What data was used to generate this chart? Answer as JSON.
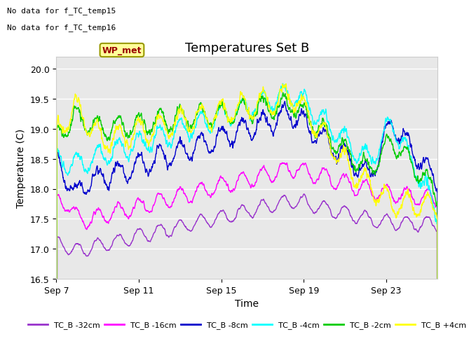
{
  "title": "Temperatures Set B",
  "xlabel": "Time",
  "ylabel": "Temperature (C)",
  "ylim": [
    16.5,
    20.2
  ],
  "note1": "No data for f_TC_temp15",
  "note2": "No data for f_TC_temp16",
  "wp_met_label": "WP_met",
  "legend_entries": [
    "TC_B -32cm",
    "TC_B -16cm",
    "TC_B -8cm",
    "TC_B -4cm",
    "TC_B -2cm",
    "TC_B +4cm"
  ],
  "line_colors": [
    "#9933cc",
    "#ff00ff",
    "#0000cc",
    "#00ffff",
    "#00cc00",
    "#ffff00"
  ],
  "x_tick_labels": [
    "Sep 7",
    "Sep 11",
    "Sep 15",
    "Sep 19",
    "Sep 23"
  ],
  "background_color": "#ffffff",
  "plot_bg_color": "#e8e8e8",
  "grid_color": "#ffffff",
  "yticks": [
    16.5,
    17.0,
    17.5,
    18.0,
    18.5,
    19.0,
    19.5,
    20.0
  ]
}
